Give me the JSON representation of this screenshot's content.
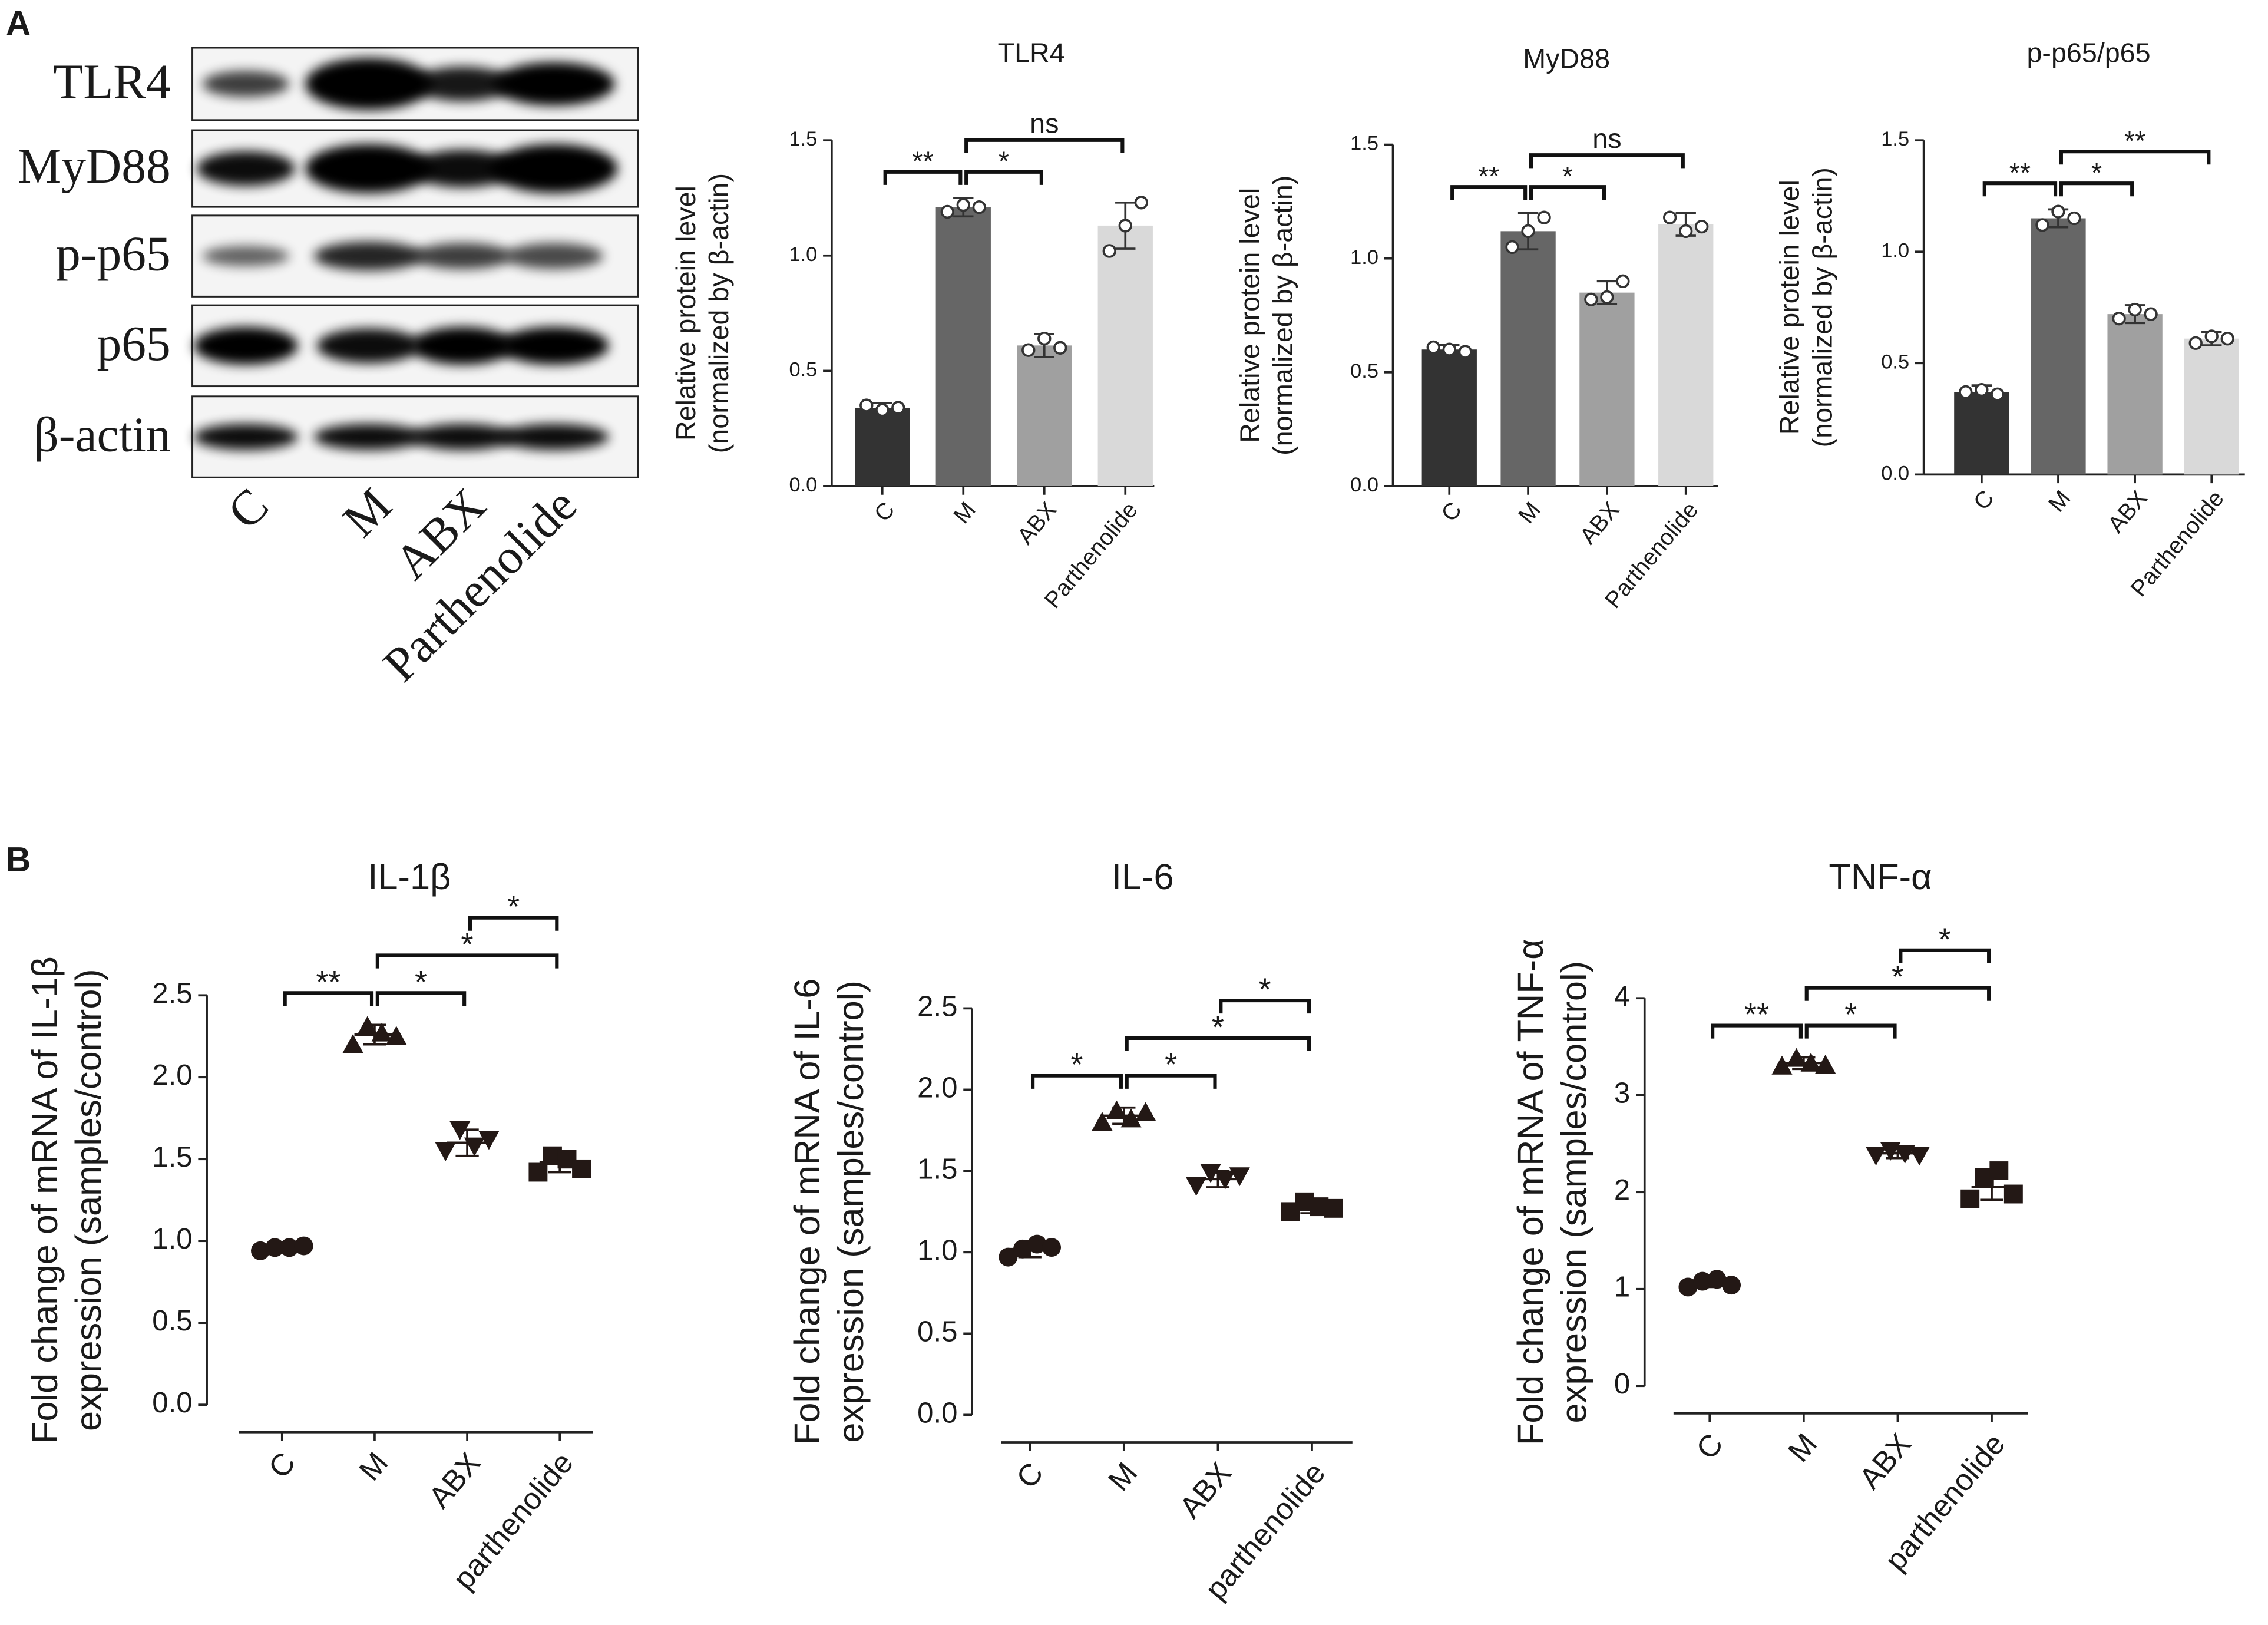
{
  "panel_labels": [
    "A",
    "B"
  ],
  "blot": {
    "row_labels": [
      "TLR4",
      "MyD88",
      "p-p65",
      "p65",
      "β-actin"
    ],
    "lane_labels": [
      "C",
      "M",
      "ABX",
      "Parthenolide"
    ]
  },
  "chart_data": [
    {
      "type": "bar",
      "title": "TLR4",
      "ylabel": [
        "Relative protein level",
        "(normalized by β-actin)"
      ],
      "categories": [
        "C",
        "M",
        "ABX",
        "Parthenolide"
      ],
      "colors": [
        "#333333",
        "#666666",
        "#a0a0a0",
        "#d9d9d9"
      ],
      "values": [
        0.34,
        1.21,
        0.61,
        1.13
      ],
      "errors": [
        0.02,
        0.04,
        0.05,
        0.1
      ],
      "points": [
        [
          0.35,
          0.33,
          0.34
        ],
        [
          1.19,
          1.22,
          1.21
        ],
        [
          0.59,
          0.64,
          0.6
        ],
        [
          1.02,
          1.13,
          1.23
        ]
      ],
      "point_marker": "open-circle",
      "ylim": [
        0,
        1.5
      ],
      "yticks": [
        {
          "value": 0,
          "label": "0.0"
        },
        0.5,
        {
          "value": 1,
          "label": "1.0"
        },
        1.5
      ],
      "annotations": [
        {
          "pair": [
            "C",
            "M"
          ],
          "label": "**"
        },
        {
          "pair": [
            "M",
            "ABX"
          ],
          "label": "*"
        },
        {
          "pair": [
            "M",
            "Parthenolide"
          ],
          "label": "ns"
        }
      ]
    },
    {
      "type": "bar",
      "title": "MyD88",
      "ylabel": [
        "Relative protein level",
        "(normalized by β-actin)"
      ],
      "categories": [
        "C",
        "M",
        "ABX",
        "Parthenolide"
      ],
      "colors": [
        "#333333",
        "#666666",
        "#a0a0a0",
        "#d9d9d9"
      ],
      "values": [
        0.6,
        1.12,
        0.85,
        1.15
      ],
      "errors": [
        0.02,
        0.08,
        0.05,
        0.05
      ],
      "points": [
        [
          0.61,
          0.6,
          0.59
        ],
        [
          1.05,
          1.12,
          1.18
        ],
        [
          0.82,
          0.83,
          0.9
        ],
        [
          1.18,
          1.12,
          1.14
        ]
      ],
      "point_marker": "open-circle",
      "ylim": [
        0,
        1.5
      ],
      "yticks": [
        {
          "value": 0,
          "label": "0.0"
        },
        0.5,
        {
          "value": 1,
          "label": "1.0"
        },
        1.5
      ],
      "annotations": [
        {
          "pair": [
            "C",
            "M"
          ],
          "label": "**"
        },
        {
          "pair": [
            "M",
            "ABX"
          ],
          "label": "*"
        },
        {
          "pair": [
            "M",
            "Parthenolide"
          ],
          "label": "ns"
        }
      ]
    },
    {
      "type": "bar",
      "title": "p-p65/p65",
      "ylabel": [
        "Relative protein level",
        "(normalized by β-actin)"
      ],
      "categories": [
        "C",
        "M",
        "ABX",
        "Parthenolide"
      ],
      "colors": [
        "#333333",
        "#666666",
        "#a0a0a0",
        "#d9d9d9"
      ],
      "values": [
        0.37,
        1.15,
        0.72,
        0.61
      ],
      "errors": [
        0.03,
        0.04,
        0.04,
        0.03
      ],
      "points": [
        [
          0.37,
          0.38,
          0.36
        ],
        [
          1.12,
          1.18,
          1.15
        ],
        [
          0.7,
          0.74,
          0.72
        ],
        [
          0.59,
          0.62,
          0.61
        ]
      ],
      "point_marker": "open-circle",
      "ylim": [
        0,
        1.5
      ],
      "yticks": [
        {
          "value": 0,
          "label": "0.0"
        },
        0.5,
        {
          "value": 1,
          "label": "1.0"
        },
        1.5
      ],
      "annotations": [
        {
          "pair": [
            "C",
            "M"
          ],
          "label": "**"
        },
        {
          "pair": [
            "M",
            "ABX"
          ],
          "label": "*"
        },
        {
          "pair": [
            "M",
            "Parthenolide"
          ],
          "label": "**"
        }
      ]
    },
    {
      "type": "scatter",
      "title": "IL-1β",
      "ylabel": [
        "Fold change of mRNA of IL-1β",
        "expression (samples/control)"
      ],
      "categories": [
        "C",
        "M",
        "ABX",
        "parthenolide"
      ],
      "color": "#231815",
      "markers": [
        "circle",
        "triangle-up",
        "triangle-down",
        "square"
      ],
      "values": [
        0.96,
        2.26,
        1.6,
        1.48
      ],
      "errors": [
        0.02,
        0.06,
        0.08,
        0.06
      ],
      "points": [
        [
          0.94,
          0.96,
          0.96,
          0.97
        ],
        [
          2.2,
          2.31,
          2.27,
          2.25
        ],
        [
          1.55,
          1.68,
          1.58,
          1.62
        ],
        [
          1.42,
          1.52,
          1.5,
          1.44
        ]
      ],
      "ylim": [
        0,
        2.5
      ],
      "yticks": [
        {
          "value": 0,
          "label": "0.0"
        },
        0.5,
        {
          "value": 1,
          "label": "1.0"
        },
        1.5,
        {
          "value": 2,
          "label": "2.0"
        },
        2.5
      ],
      "annotations": [
        {
          "pair": [
            "C",
            "M"
          ],
          "label": "**"
        },
        {
          "pair": [
            "M",
            "ABX"
          ],
          "label": "*"
        },
        {
          "pair": [
            "M",
            "parthenolide"
          ],
          "label": "*"
        },
        {
          "pair": [
            "ABX",
            "parthenolide"
          ],
          "label": "*"
        }
      ]
    },
    {
      "type": "scatter",
      "title": "IL-6",
      "ylabel": [
        "Fold change of mRNA of IL-6",
        "expression (samples/control)"
      ],
      "categories": [
        "C",
        "M",
        "ABX",
        "parthenolide"
      ],
      "color": "#231815",
      "markers": [
        "circle",
        "triangle-up",
        "triangle-down",
        "square"
      ],
      "values": [
        1.02,
        1.84,
        1.45,
        1.28
      ],
      "errors": [
        0.05,
        0.05,
        0.05,
        0.04
      ],
      "points": [
        [
          0.97,
          1.02,
          1.05,
          1.03
        ],
        [
          1.8,
          1.87,
          1.82,
          1.86
        ],
        [
          1.41,
          1.49,
          1.45,
          1.47
        ],
        [
          1.25,
          1.31,
          1.28,
          1.27
        ]
      ],
      "ylim": [
        0,
        2.5
      ],
      "yticks": [
        {
          "value": 0,
          "label": "0.0"
        },
        0.5,
        {
          "value": 1,
          "label": "1.0"
        },
        1.5,
        {
          "value": 2,
          "label": "2.0"
        },
        2.5
      ],
      "annotations": [
        {
          "pair": [
            "C",
            "M"
          ],
          "label": "*"
        },
        {
          "pair": [
            "M",
            "ABX"
          ],
          "label": "*"
        },
        {
          "pair": [
            "M",
            "parthenolide"
          ],
          "label": "*"
        },
        {
          "pair": [
            "ABX",
            "parthenolide"
          ],
          "label": "*"
        }
      ]
    },
    {
      "type": "scatter",
      "title": "TNF-α",
      "ylabel": [
        "Fold change of mRNA of TNF-α",
        "expression (samples/control)"
      ],
      "categories": [
        "C",
        "M",
        "ABX",
        "parthenolide"
      ],
      "color": "#231815",
      "markers": [
        "circle",
        "triangle-up",
        "triangle-down",
        "square"
      ],
      "values": [
        1.06,
        3.33,
        2.4,
        2.05
      ],
      "errors": [
        0.04,
        0.06,
        0.05,
        0.13
      ],
      "points": [
        [
          1.02,
          1.08,
          1.1,
          1.04
        ],
        [
          3.3,
          3.38,
          3.33,
          3.31
        ],
        [
          2.38,
          2.43,
          2.4,
          2.38
        ],
        [
          1.93,
          2.15,
          2.22,
          1.98
        ]
      ],
      "ylim": [
        0,
        4
      ],
      "yticks": [
        0,
        1,
        2,
        3,
        4
      ],
      "annotations": [
        {
          "pair": [
            "C",
            "M"
          ],
          "label": "**"
        },
        {
          "pair": [
            "M",
            "ABX"
          ],
          "label": "*"
        },
        {
          "pair": [
            "M",
            "parthenolide"
          ],
          "label": "*"
        },
        {
          "pair": [
            "ABX",
            "parthenolide"
          ],
          "label": "*"
        }
      ]
    }
  ]
}
